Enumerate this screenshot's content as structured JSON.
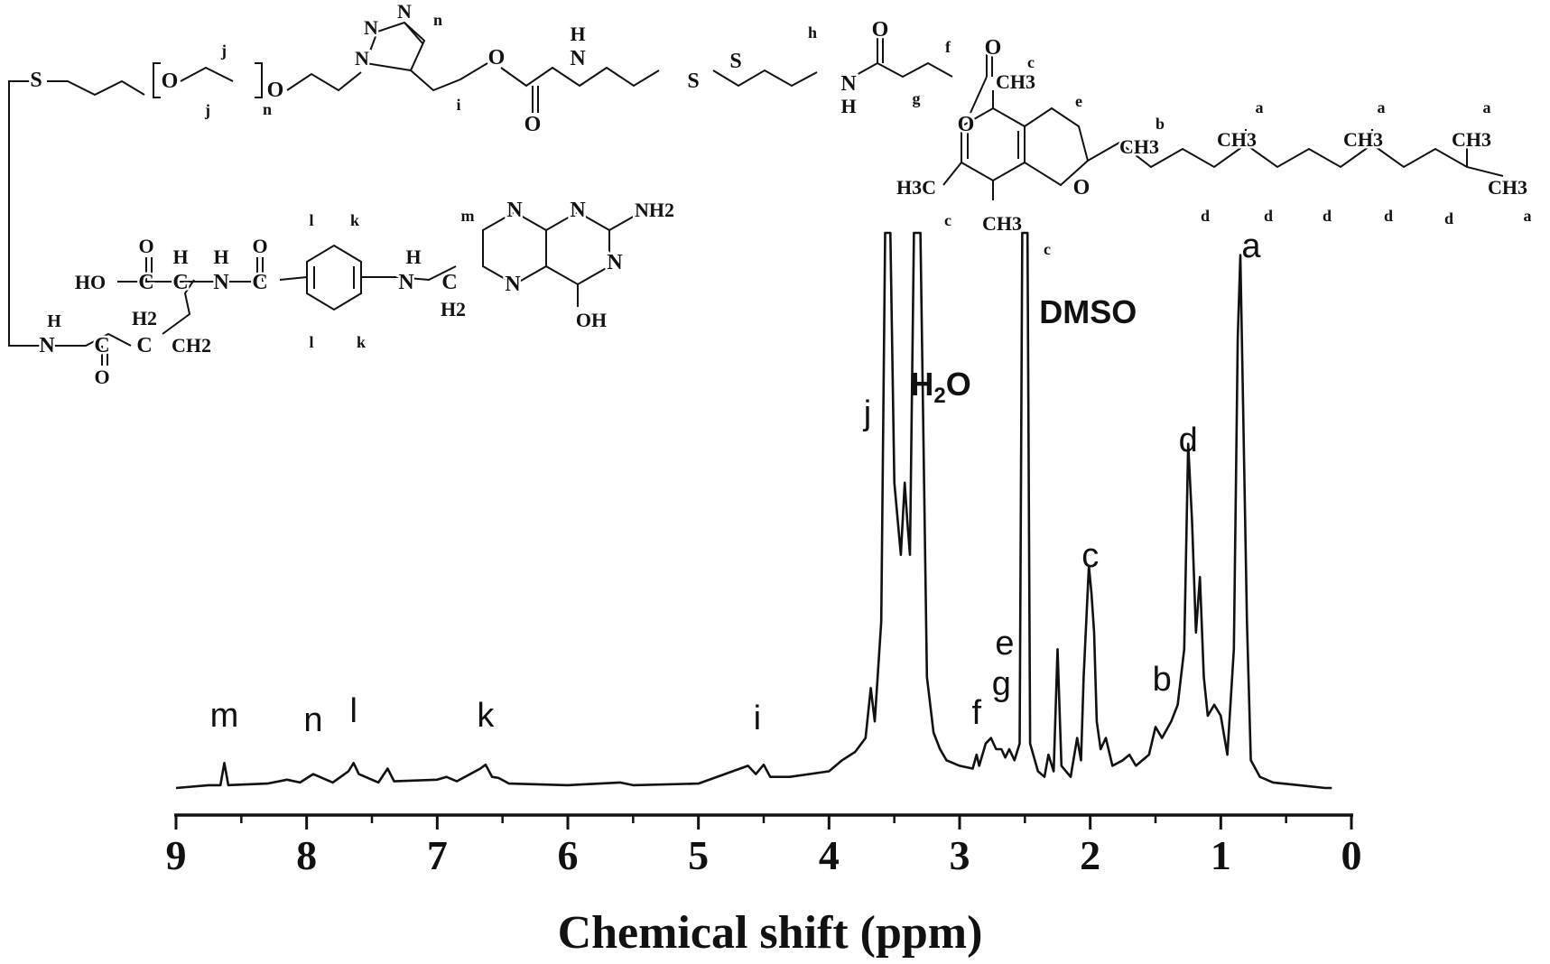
{
  "chart_data": {
    "type": "line",
    "title": "",
    "xlabel": "Chemical shift (ppm)",
    "ylabel": "",
    "x_reversed": true,
    "xlim": [
      9,
      0
    ],
    "x_ticks": [
      "9",
      "8",
      "7",
      "6",
      "5",
      "4",
      "3",
      "2",
      "1",
      "0"
    ],
    "grid": false,
    "legend": "none",
    "color": "#111111",
    "baseline": 0,
    "spectrum_points": [
      [
        9.0,
        0.0
      ],
      [
        8.75,
        0.005
      ],
      [
        8.66,
        0.005
      ],
      [
        8.63,
        0.045
      ],
      [
        8.6,
        0.005
      ],
      [
        8.3,
        0.008
      ],
      [
        8.15,
        0.015
      ],
      [
        8.05,
        0.01
      ],
      [
        7.95,
        0.025
      ],
      [
        7.88,
        0.018
      ],
      [
        7.8,
        0.01
      ],
      [
        7.68,
        0.03
      ],
      [
        7.64,
        0.045
      ],
      [
        7.6,
        0.025
      ],
      [
        7.45,
        0.01
      ],
      [
        7.38,
        0.035
      ],
      [
        7.33,
        0.012
      ],
      [
        7.0,
        0.015
      ],
      [
        6.93,
        0.02
      ],
      [
        6.85,
        0.012
      ],
      [
        6.67,
        0.035
      ],
      [
        6.63,
        0.042
      ],
      [
        6.58,
        0.02
      ],
      [
        6.53,
        0.018
      ],
      [
        6.45,
        0.008
      ],
      [
        6.0,
        0.005
      ],
      [
        5.6,
        0.01
      ],
      [
        5.5,
        0.005
      ],
      [
        5.0,
        0.008
      ],
      [
        4.62,
        0.04
      ],
      [
        4.56,
        0.025
      ],
      [
        4.5,
        0.042
      ],
      [
        4.45,
        0.02
      ],
      [
        4.3,
        0.02
      ],
      [
        4.0,
        0.03
      ],
      [
        3.9,
        0.05
      ],
      [
        3.8,
        0.065
      ],
      [
        3.72,
        0.09
      ],
      [
        3.68,
        0.18
      ],
      [
        3.65,
        0.12
      ],
      [
        3.6,
        0.3
      ],
      [
        3.57,
        1.0
      ],
      [
        3.53,
        1.0
      ],
      [
        3.5,
        0.55
      ],
      [
        3.45,
        0.42
      ],
      [
        3.42,
        0.55
      ],
      [
        3.4,
        0.48
      ],
      [
        3.38,
        0.42
      ],
      [
        3.35,
        1.0
      ],
      [
        3.3,
        1.0
      ],
      [
        3.25,
        0.2
      ],
      [
        3.2,
        0.1
      ],
      [
        3.15,
        0.07
      ],
      [
        3.1,
        0.05
      ],
      [
        3.0,
        0.04
      ],
      [
        2.9,
        0.035
      ],
      [
        2.87,
        0.06
      ],
      [
        2.85,
        0.04
      ],
      [
        2.8,
        0.08
      ],
      [
        2.76,
        0.09
      ],
      [
        2.72,
        0.07
      ],
      [
        2.68,
        0.07
      ],
      [
        2.65,
        0.055
      ],
      [
        2.62,
        0.07
      ],
      [
        2.58,
        0.05
      ],
      [
        2.54,
        0.08
      ],
      [
        2.52,
        1.0
      ],
      [
        2.48,
        1.0
      ],
      [
        2.46,
        0.08
      ],
      [
        2.4,
        0.03
      ],
      [
        2.35,
        0.02
      ],
      [
        2.32,
        0.06
      ],
      [
        2.28,
        0.03
      ],
      [
        2.25,
        0.25
      ],
      [
        2.22,
        0.04
      ],
      [
        2.15,
        0.02
      ],
      [
        2.1,
        0.09
      ],
      [
        2.07,
        0.05
      ],
      [
        2.05,
        0.2
      ],
      [
        2.03,
        0.3
      ],
      [
        2.01,
        0.4
      ],
      [
        1.99,
        0.35
      ],
      [
        1.97,
        0.28
      ],
      [
        1.95,
        0.12
      ],
      [
        1.92,
        0.07
      ],
      [
        1.88,
        0.09
      ],
      [
        1.83,
        0.04
      ],
      [
        1.75,
        0.05
      ],
      [
        1.7,
        0.06
      ],
      [
        1.65,
        0.04
      ],
      [
        1.55,
        0.06
      ],
      [
        1.5,
        0.11
      ],
      [
        1.45,
        0.09
      ],
      [
        1.38,
        0.12
      ],
      [
        1.33,
        0.15
      ],
      [
        1.28,
        0.25
      ],
      [
        1.25,
        0.62
      ],
      [
        1.22,
        0.48
      ],
      [
        1.19,
        0.28
      ],
      [
        1.16,
        0.38
      ],
      [
        1.13,
        0.2
      ],
      [
        1.1,
        0.13
      ],
      [
        1.05,
        0.15
      ],
      [
        1.0,
        0.13
      ],
      [
        0.95,
        0.06
      ],
      [
        0.9,
        0.25
      ],
      [
        0.87,
        0.81
      ],
      [
        0.85,
        0.96
      ],
      [
        0.83,
        0.7
      ],
      [
        0.8,
        0.3
      ],
      [
        0.77,
        0.05
      ],
      [
        0.7,
        0.02
      ],
      [
        0.6,
        0.01
      ],
      [
        0.4,
        0.005
      ],
      [
        0.2,
        0.0
      ],
      [
        0.15,
        0.0
      ]
    ],
    "annotations": [
      {
        "label": "m",
        "x": 8.63
      },
      {
        "label": "n",
        "x": 7.95
      },
      {
        "label": "l",
        "x": 7.64
      },
      {
        "label": "k",
        "x": 6.63
      },
      {
        "label": "i",
        "x": 4.55
      },
      {
        "label": "j",
        "x": 3.65
      },
      {
        "label": "H2O",
        "x": 3.2
      },
      {
        "label": "f",
        "x": 2.87
      },
      {
        "label": "g",
        "x": 2.68
      },
      {
        "label": "e",
        "x": 2.62
      },
      {
        "label": "DMSO",
        "x": 2.5
      },
      {
        "label": "c",
        "x": 2.0
      },
      {
        "label": "b",
        "x": 1.45
      },
      {
        "label": "d",
        "x": 1.25
      },
      {
        "label": "a",
        "x": 0.85
      }
    ]
  },
  "structure": {
    "atoms": {
      "S": "S",
      "O": "O",
      "N": "N",
      "H": "H",
      "C": "C",
      "CH3": "CH3",
      "NH2": "NH2",
      "H2": "H2",
      "OH": "OH",
      "HO": "HO",
      "H3C": "H3C",
      "CH2": "CH2"
    },
    "labels": {
      "a": "a",
      "b": "b",
      "c": "c",
      "d": "d",
      "e": "e",
      "f": "f",
      "g": "g",
      "h": "h",
      "i": "i",
      "j": "j",
      "k": "k",
      "l": "l",
      "m": "m",
      "n": "n"
    }
  }
}
